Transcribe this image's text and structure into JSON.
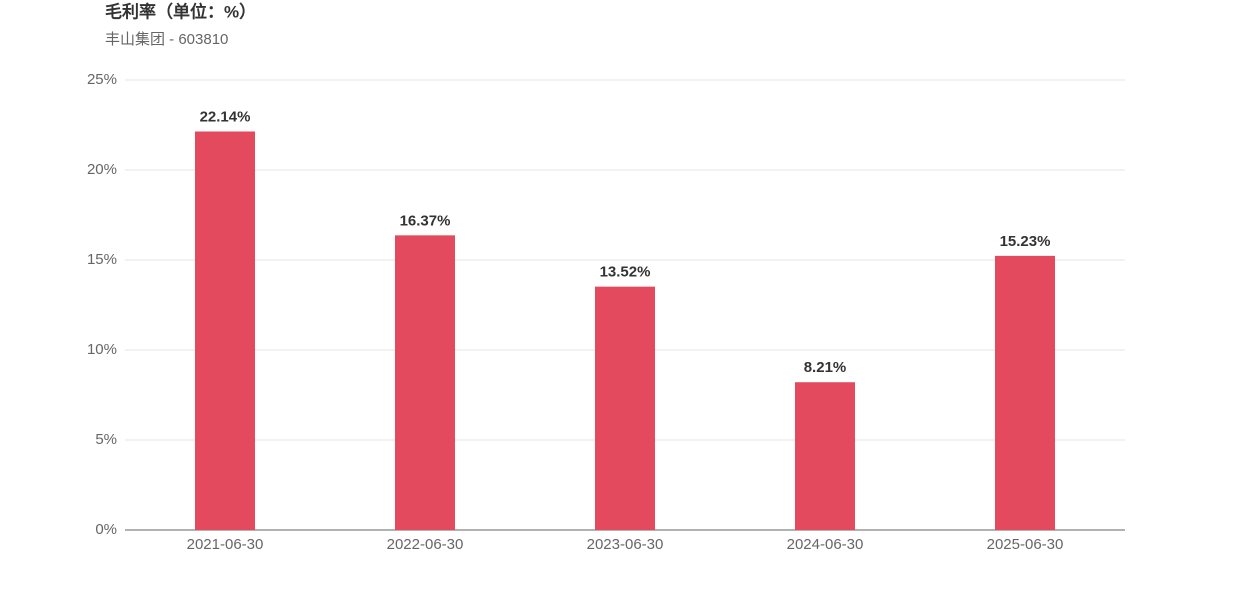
{
  "chart_data": {
    "type": "bar",
    "title": "毛利率（单位：%）",
    "subtitle": "丰山集团 - 603810",
    "categories": [
      "2021-06-30",
      "2022-06-30",
      "2023-06-30",
      "2024-06-30",
      "2025-06-30"
    ],
    "values": [
      22.14,
      16.37,
      13.52,
      8.21,
      15.23
    ],
    "value_labels": [
      "22.14%",
      "16.37%",
      "13.52%",
      "8.21%",
      "15.23%"
    ],
    "color": "#e34a5e",
    "ylim": [
      0,
      25
    ],
    "yticks": [
      {
        "value": 0,
        "label": "0%"
      },
      {
        "value": 5,
        "label": "5%"
      },
      {
        "value": 10,
        "label": "10%"
      },
      {
        "value": 15,
        "label": "15%"
      },
      {
        "value": 20,
        "label": "20%"
      },
      {
        "value": 25,
        "label": "25%"
      }
    ],
    "grid": true
  }
}
